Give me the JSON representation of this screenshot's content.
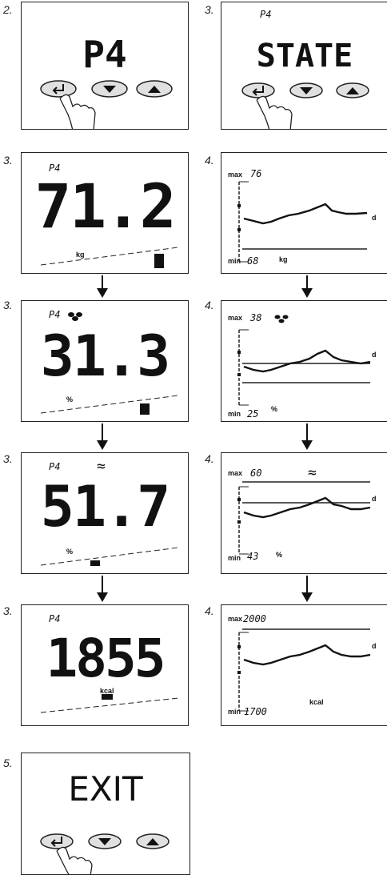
{
  "steps": {
    "s1": "2.",
    "s2": "3.",
    "l1": "3.",
    "r1": "4.",
    "l2": "3.",
    "r2": "4.",
    "l3": "3.",
    "r3": "4.",
    "l4": "3.",
    "r4": "4.",
    "s5": "5."
  },
  "panel_p4": {
    "title": "P4"
  },
  "panel_state": {
    "tag": "P4",
    "title": "STATE"
  },
  "weight": {
    "tag": "P4",
    "value": "71.2",
    "unit": "kg"
  },
  "fat": {
    "tag": "P4",
    "value": "31.3",
    "unit": "%"
  },
  "water": {
    "tag": "P4",
    "value": "51.7",
    "unit": "%",
    "icon": "≈"
  },
  "kcal": {
    "tag": "P4",
    "value": "1855",
    "unit": "kcal"
  },
  "graph_weight": {
    "max_label": "max",
    "max_val": "76",
    "min_label": "min",
    "min_val": "68",
    "unit": "kg",
    "d": "d"
  },
  "graph_fat": {
    "max_label": "max",
    "max_val": "38",
    "min_label": "min",
    "min_val": "25",
    "unit": "%",
    "d": "d"
  },
  "graph_water": {
    "max_label": "max",
    "max_val": "60",
    "min_label": "min",
    "min_val": "43",
    "unit": "%",
    "d": "d",
    "icon": "≈"
  },
  "graph_kcal": {
    "max_label": "max",
    "max_val": "2000",
    "min_label": "min",
    "min_val": "1700",
    "unit": "kcal",
    "d": "d"
  },
  "panel_exit": {
    "title": "EXIT"
  },
  "icons": [
    "enter-button-icon",
    "down-button-icon",
    "up-button-icon",
    "finger-pointer-icon",
    "down-arrow-icon",
    "fat-drops-icon",
    "water-waves-icon"
  ]
}
